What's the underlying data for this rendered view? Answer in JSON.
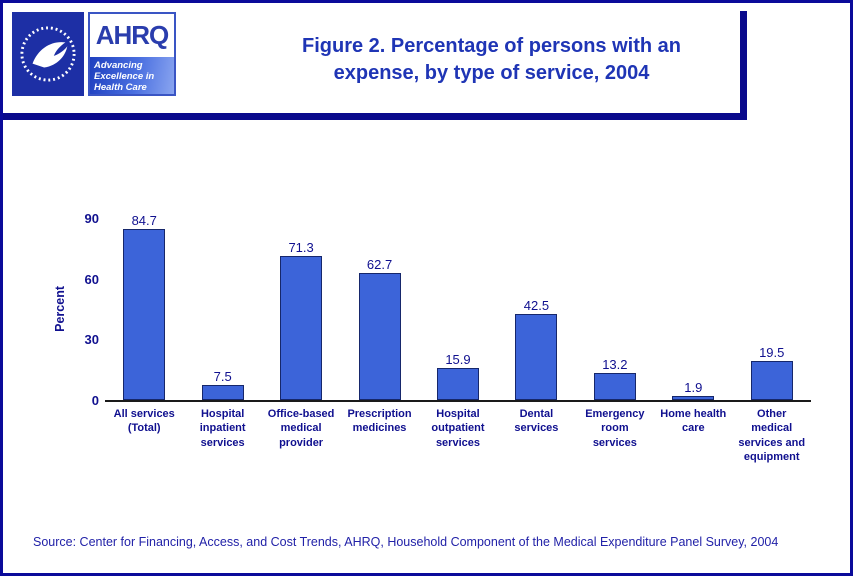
{
  "header": {
    "title_line1": "Figure 2. Percentage of persons with an",
    "title_line2": "expense, by type of service, 2004"
  },
  "logos": {
    "hhs_logo_name": "hhs-eagle-seal",
    "ahrq_acronym": "AHRQ",
    "ahrq_tagline": [
      "Advancing",
      "Excellence in",
      "Health Care"
    ]
  },
  "chart_data": {
    "type": "bar",
    "title": "Figure 2. Percentage of persons with an expense, by type of service, 2004",
    "ylabel": "Percent",
    "xlabel": "",
    "ylim": [
      0,
      90
    ],
    "yticks": [
      0,
      30,
      60,
      90
    ],
    "grid": false,
    "legend": false,
    "categories": [
      "All services (Total)",
      "Hospital inpatient services",
      "Office-based medical provider",
      "Prescription medicines",
      "Hospital outpatient services",
      "Dental services",
      "Emergency room services",
      "Home health care",
      "Other medical services and equipment"
    ],
    "category_lines": [
      [
        "All services",
        "(Total)"
      ],
      [
        "Hospital",
        "inpatient",
        "services"
      ],
      [
        "Office-based",
        "medical",
        "provider"
      ],
      [
        "Prescription",
        "medicines"
      ],
      [
        "Hospital",
        "outpatient",
        "services"
      ],
      [
        "Dental",
        "services"
      ],
      [
        "Emergency",
        "room",
        "services"
      ],
      [
        "Home health",
        "care"
      ],
      [
        "Other",
        "medical",
        "services and",
        "equipment"
      ]
    ],
    "values": [
      84.7,
      7.5,
      71.3,
      62.7,
      15.9,
      42.5,
      13.2,
      1.9,
      19.5
    ],
    "value_labels": [
      "84.7",
      "7.5",
      "71.3",
      "62.7",
      "15.9",
      "42.5",
      "13.2",
      "1.9",
      "19.5"
    ],
    "bar_color": "#3c64d9",
    "bar_border_color": "#16276b"
  },
  "footer": {
    "source": "Source: Center for Financing, Access, and Cost Trends, AHRQ, Household Component of the Medical Expenditure Panel Survey, 2004"
  },
  "colors": {
    "page_border": "#0a0a9a",
    "accent_rule": "#0a0a8c",
    "title_text": "#1f35b5",
    "axis_text": "#10108f",
    "source_text": "#2222a8"
  }
}
